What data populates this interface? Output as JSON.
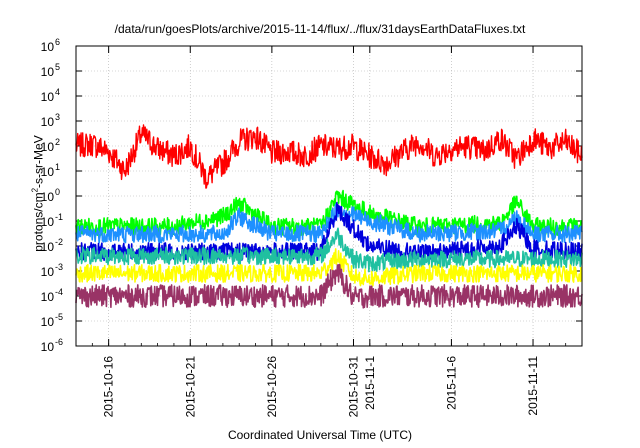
{
  "chart_data": {
    "type": "line",
    "title": "/data/run/goesPlots/archive/2015-11-14/flux/../flux/31daysEarthDataFluxes.txt",
    "xlabel": "Coordinated Universal Time (UTC)",
    "ylabel_base": "protons/cm",
    "ylabel_sup": "2",
    "ylabel_rest": "-s-sr-MeV",
    "y_scale": "log",
    "ylim": [
      1e-06,
      1000000.0
    ],
    "yticks": [
      {
        "value": 1e-06,
        "base": "10",
        "exp": "-6"
      },
      {
        "value": 1e-05,
        "base": "10",
        "exp": "-5"
      },
      {
        "value": 0.0001,
        "base": "10",
        "exp": "-4"
      },
      {
        "value": 0.001,
        "base": "10",
        "exp": "-3"
      },
      {
        "value": 0.01,
        "base": "10",
        "exp": "-2"
      },
      {
        "value": 0.1,
        "base": "10",
        "exp": "-1"
      },
      {
        "value": 1,
        "base": "10",
        "exp": "0"
      },
      {
        "value": 10.0,
        "base": "10",
        "exp": "1"
      },
      {
        "value": 100.0,
        "base": "10",
        "exp": "2"
      },
      {
        "value": 1000.0,
        "base": "10",
        "exp": "3"
      },
      {
        "value": 10000.0,
        "base": "10",
        "exp": "4"
      },
      {
        "value": 100000.0,
        "base": "10",
        "exp": "5"
      },
      {
        "value": 1000000.0,
        "base": "10",
        "exp": "6"
      }
    ],
    "xlim": [
      "2015-10-14",
      "2015-11-14"
    ],
    "xticks": [
      "2015-10-16",
      "2015-10-21",
      "2015-10-26",
      "2015-10-31",
      "2015-11-1",
      "2015-11-6",
      "2015-11-11"
    ],
    "xtick_dates": [
      "2015-10-16",
      "2015-10-21",
      "2015-10-26",
      "2015-10-31",
      "2015-11-01",
      "2015-11-06",
      "2015-11-11"
    ],
    "grid": true,
    "legend": "none",
    "series": [
      {
        "color": "#ff0000",
        "x": [
          "2015-10-14",
          "2015-10-15",
          "2015-10-16",
          "2015-10-17",
          "2015-10-18",
          "2015-10-19",
          "2015-10-20",
          "2015-10-21",
          "2015-10-22",
          "2015-10-23",
          "2015-10-24",
          "2015-10-25",
          "2015-10-26",
          "2015-10-27",
          "2015-10-28",
          "2015-10-29",
          "2015-10-30",
          "2015-10-31",
          "2015-11-01",
          "2015-11-02",
          "2015-11-03",
          "2015-11-04",
          "2015-11-05",
          "2015-11-06",
          "2015-11-07",
          "2015-11-08",
          "2015-11-09",
          "2015-11-10",
          "2015-11-11",
          "2015-11-12",
          "2015-11-13",
          "2015-11-14"
        ],
        "y": [
          100,
          120,
          60,
          10,
          300,
          80,
          40,
          100,
          5,
          20,
          150,
          250,
          50,
          60,
          40,
          100,
          80,
          100,
          40,
          20,
          60,
          150,
          40,
          80,
          100,
          60,
          200,
          30,
          200,
          80,
          150,
          40
        ]
      },
      {
        "color": "#00ff00",
        "x": [
          "2015-10-14",
          "2015-10-20",
          "2015-10-23",
          "2015-10-24",
          "2015-10-26",
          "2015-10-29",
          "2015-10-30",
          "2015-11-01",
          "2015-11-04",
          "2015-11-09",
          "2015-11-10",
          "2015-11-11",
          "2015-11-14"
        ],
        "y": [
          0.06,
          0.06,
          0.15,
          0.5,
          0.06,
          0.06,
          1.0,
          0.2,
          0.06,
          0.08,
          0.6,
          0.06,
          0.06
        ]
      },
      {
        "color": "#1e90ff",
        "x": [
          "2015-10-14",
          "2015-10-23",
          "2015-10-24",
          "2015-10-26",
          "2015-10-29",
          "2015-10-30",
          "2015-11-01",
          "2015-11-04",
          "2015-11-09",
          "2015-11-10",
          "2015-11-11",
          "2015-11-14"
        ],
        "y": [
          0.03,
          0.03,
          0.15,
          0.03,
          0.03,
          0.3,
          0.1,
          0.03,
          0.04,
          0.15,
          0.03,
          0.03
        ]
      },
      {
        "color": "#0000dd",
        "x": [
          "2015-10-14",
          "2015-10-29",
          "2015-10-30",
          "2015-10-31",
          "2015-11-01",
          "2015-11-04",
          "2015-11-09",
          "2015-11-10",
          "2015-11-11",
          "2015-11-14"
        ],
        "y": [
          0.006,
          0.006,
          0.3,
          0.05,
          0.01,
          0.005,
          0.01,
          0.06,
          0.008,
          0.006
        ]
      },
      {
        "color": "#20c0a0",
        "x": [
          "2015-10-14",
          "2015-10-29",
          "2015-10-30",
          "2015-10-31",
          "2015-11-01",
          "2015-11-04",
          "2015-11-14"
        ],
        "y": [
          0.004,
          0.004,
          0.03,
          0.003,
          0.002,
          0.003,
          0.003
        ]
      },
      {
        "color": "#ffff00",
        "x": [
          "2015-10-14",
          "2015-10-29",
          "2015-10-30",
          "2015-10-31",
          "2015-11-01",
          "2015-11-04",
          "2015-11-14"
        ],
        "y": [
          0.0008,
          0.0008,
          0.004,
          0.0006,
          0.0005,
          0.0008,
          0.0008
        ]
      },
      {
        "color": "#993366",
        "x": [
          "2015-10-14",
          "2015-10-29",
          "2015-10-30",
          "2015-10-31",
          "2015-11-01",
          "2015-11-14"
        ],
        "y": [
          0.0001,
          0.0001,
          0.001,
          8e-05,
          0.0001,
          0.0001
        ]
      }
    ]
  }
}
